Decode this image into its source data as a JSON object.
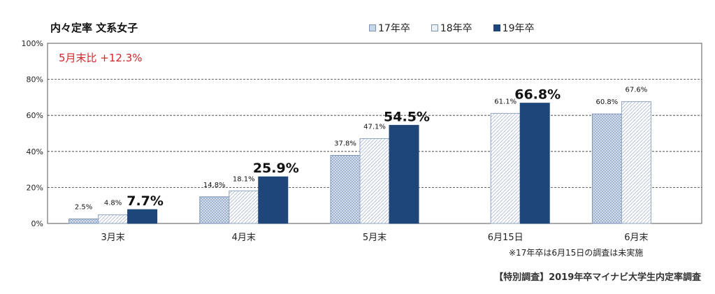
{
  "chart_data": {
    "type": "bar",
    "title": "内々定率 文系女子",
    "annotation": "5月末比 +12.3%",
    "note": "※17年卒は6月15日の調査は未実施",
    "source": "【特別調査】2019年卒マイナビ大学生内定率調査",
    "categories": [
      "3月末",
      "4月末",
      "5月末",
      "6月15日",
      "6月末"
    ],
    "y_ticks": [
      "0%",
      "20%",
      "40%",
      "60%",
      "80%",
      "100%"
    ],
    "ylim": [
      0,
      100
    ],
    "grid": true,
    "legend_position": "top-right",
    "series": [
      {
        "name": "17年卒",
        "color": "#c9d6e8",
        "values": [
          2.5,
          14.8,
          37.8,
          null,
          60.8
        ],
        "labels": [
          "2.5%",
          "14.8%",
          "37.8%",
          "",
          "60.8%"
        ]
      },
      {
        "name": "18年卒",
        "color": "#eef2f8",
        "values": [
          4.8,
          18.1,
          47.1,
          61.1,
          67.6
        ],
        "labels": [
          "4.8%",
          "18.1%",
          "47.1%",
          "61.1%",
          "67.6%"
        ]
      },
      {
        "name": "19年卒",
        "color": "#1f4678",
        "values": [
          7.7,
          25.9,
          54.5,
          66.8,
          null
        ],
        "labels": [
          "7.7%",
          "25.9%",
          "54.5%",
          "66.8%",
          ""
        ]
      }
    ]
  }
}
